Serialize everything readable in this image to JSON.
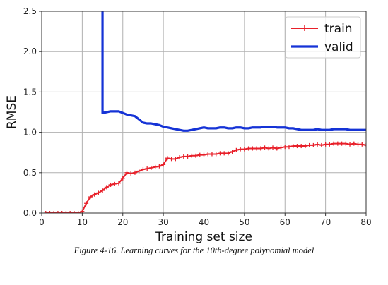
{
  "caption": "Figure 4-16. Learning curves for the 10th-degree polynomial model",
  "chart_data": {
    "type": "line",
    "xlabel": "Training set size",
    "ylabel": "RMSE",
    "xlim": [
      0,
      80
    ],
    "ylim": [
      0,
      2.5
    ],
    "xticks": [
      0,
      10,
      20,
      30,
      40,
      50,
      60,
      70,
      80
    ],
    "yticks": [
      0.0,
      0.5,
      1.0,
      1.5,
      2.0,
      2.5
    ],
    "ytick_labels": [
      "0.0",
      "0.5",
      "1.0",
      "1.5",
      "2.0",
      "2.5"
    ],
    "grid": true,
    "legend_position": "top-right",
    "series": [
      {
        "name": "train",
        "color": "#e8202a",
        "marker": "+",
        "x": [
          1,
          2,
          3,
          4,
          5,
          6,
          7,
          8,
          9,
          10,
          11,
          12,
          13,
          14,
          15,
          16,
          17,
          18,
          19,
          20,
          21,
          22,
          23,
          24,
          25,
          26,
          27,
          28,
          29,
          30,
          31,
          32,
          33,
          34,
          35,
          36,
          37,
          38,
          39,
          40,
          41,
          42,
          43,
          44,
          45,
          46,
          47,
          48,
          49,
          50,
          51,
          52,
          53,
          54,
          55,
          56,
          57,
          58,
          59,
          60,
          61,
          62,
          63,
          64,
          65,
          66,
          67,
          68,
          69,
          70,
          71,
          72,
          73,
          74,
          75,
          76,
          77,
          78,
          79,
          80
        ],
        "y": [
          0,
          0,
          0,
          0,
          0,
          0,
          0,
          0,
          0,
          0.02,
          0.12,
          0.2,
          0.23,
          0.25,
          0.28,
          0.32,
          0.35,
          0.36,
          0.37,
          0.43,
          0.5,
          0.49,
          0.5,
          0.52,
          0.54,
          0.55,
          0.56,
          0.57,
          0.58,
          0.6,
          0.68,
          0.67,
          0.67,
          0.69,
          0.7,
          0.7,
          0.71,
          0.71,
          0.72,
          0.72,
          0.73,
          0.73,
          0.73,
          0.74,
          0.74,
          0.74,
          0.76,
          0.78,
          0.79,
          0.79,
          0.8,
          0.8,
          0.8,
          0.8,
          0.81,
          0.8,
          0.81,
          0.8,
          0.81,
          0.82,
          0.82,
          0.83,
          0.83,
          0.83,
          0.83,
          0.84,
          0.84,
          0.85,
          0.84,
          0.85,
          0.85,
          0.86,
          0.86,
          0.86,
          0.86,
          0.85,
          0.86,
          0.85,
          0.85,
          0.84
        ]
      },
      {
        "name": "valid",
        "color": "#1533d6",
        "x": [
          15,
          15,
          16,
          17,
          18,
          19,
          20,
          21,
          22,
          23,
          24,
          25,
          26,
          27,
          28,
          29,
          30,
          31,
          32,
          33,
          34,
          35,
          36,
          37,
          38,
          39,
          40,
          41,
          42,
          43,
          44,
          45,
          46,
          47,
          48,
          49,
          50,
          51,
          52,
          53,
          54,
          55,
          56,
          57,
          58,
          59,
          60,
          61,
          62,
          63,
          64,
          65,
          66,
          67,
          68,
          69,
          70,
          71,
          72,
          73,
          74,
          75,
          76,
          77,
          78,
          79,
          80
        ],
        "y": [
          2.5,
          1.24,
          1.25,
          1.26,
          1.26,
          1.26,
          1.24,
          1.22,
          1.21,
          1.2,
          1.16,
          1.12,
          1.11,
          1.11,
          1.1,
          1.09,
          1.07,
          1.06,
          1.05,
          1.04,
          1.03,
          1.02,
          1.02,
          1.03,
          1.04,
          1.05,
          1.06,
          1.05,
          1.05,
          1.05,
          1.06,
          1.06,
          1.05,
          1.05,
          1.06,
          1.06,
          1.05,
          1.05,
          1.06,
          1.06,
          1.06,
          1.07,
          1.07,
          1.07,
          1.06,
          1.06,
          1.06,
          1.05,
          1.05,
          1.04,
          1.03,
          1.03,
          1.03,
          1.03,
          1.04,
          1.03,
          1.03,
          1.03,
          1.04,
          1.04,
          1.04,
          1.04,
          1.03,
          1.03,
          1.03,
          1.03,
          1.03
        ]
      }
    ]
  }
}
